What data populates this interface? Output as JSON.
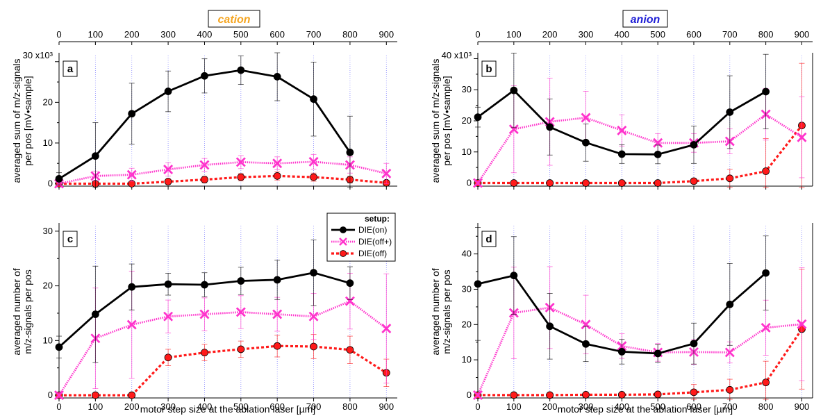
{
  "figure": {
    "x_axis_label": "motor step size at the ablation laser [µm]",
    "column_titles": [
      {
        "text": "cation",
        "color": "#f5a623"
      },
      {
        "text": "anion",
        "color": "#1f1fd6"
      }
    ],
    "legend": {
      "title": "setup:",
      "entries": [
        "DIE(on)",
        "DIE(off+)",
        "DIE(off)"
      ],
      "placement": "top-right of panel c"
    },
    "series_colors": {
      "DIE(on)": "#000000",
      "DIE(off+)": "#ff33cc",
      "DIE(off)": "#ff1a1a"
    }
  },
  "chart_data": [
    {
      "type": "line",
      "panel": "a",
      "ylabel": "averaged sum of m/z-signals per pos [mV•sample]",
      "y_multiplier_label": "30 x10³",
      "xlim": [
        0,
        930
      ],
      "ylim": [
        -0.6,
        31.5
      ],
      "x_ticks": [
        0,
        100,
        200,
        300,
        400,
        500,
        600,
        700,
        800,
        900
      ],
      "y_ticks": [
        0,
        10,
        20
      ],
      "series": [
        {
          "name": "DIE(on)",
          "x": [
            0,
            100,
            200,
            300,
            400,
            500,
            600,
            700,
            800
          ],
          "y": [
            1.2,
            6.8,
            17.2,
            22.7,
            26.5,
            27.9,
            26.3,
            20.8,
            7.7
          ],
          "err": [
            1.5,
            8.2,
            7.5,
            5,
            4.2,
            3.5,
            5.9,
            9.1,
            8.9
          ]
        },
        {
          "name": "DIE(off+)",
          "x": [
            0,
            100,
            200,
            300,
            400,
            500,
            600,
            700,
            800,
            900
          ],
          "y": [
            0,
            1.9,
            2.2,
            3.5,
            4.6,
            5.3,
            5.0,
            5.4,
            4.6,
            2.5
          ],
          "err": [
            0.3,
            1.2,
            1.6,
            1.6,
            1.6,
            1.6,
            1.6,
            1.8,
            2,
            2.5
          ]
        },
        {
          "name": "DIE(off)",
          "x": [
            0,
            100,
            200,
            300,
            400,
            500,
            600,
            700,
            800,
            900
          ],
          "y": [
            0,
            0,
            0,
            0.5,
            1.0,
            1.6,
            1.9,
            1.6,
            1.0,
            0.2
          ],
          "err": [
            0,
            0,
            0,
            0.5,
            0.8,
            0.9,
            1.0,
            1.0,
            0.8,
            0.3
          ]
        }
      ]
    },
    {
      "type": "line",
      "panel": "b",
      "ylabel": "averaged sum of m/z-signals per pos [mV•sample]",
      "y_multiplier_label": "40 x10³",
      "xlim": [
        0,
        930
      ],
      "ylim": [
        -1,
        41
      ],
      "x_ticks": [
        0,
        100,
        200,
        300,
        400,
        500,
        600,
        700,
        800,
        900
      ],
      "y_ticks": [
        0,
        10,
        20,
        30
      ],
      "series": [
        {
          "name": "DIE(on)",
          "x": [
            0,
            100,
            200,
            300,
            400,
            500,
            600,
            700,
            800
          ],
          "y": [
            21.2,
            29.8,
            18,
            13,
            9.3,
            9.2,
            12.3,
            22.8,
            29.4
          ],
          "err": [
            3.2,
            12,
            9,
            6,
            3,
            3,
            6,
            11.7,
            12
          ]
        },
        {
          "name": "DIE(off+)",
          "x": [
            0,
            100,
            200,
            300,
            400,
            500,
            600,
            700,
            800,
            900
          ],
          "y": [
            0,
            17.3,
            19.7,
            21,
            16.9,
            12.9,
            12.9,
            13.4,
            22.1,
            14.7
          ],
          "err": [
            0.5,
            14,
            14,
            8.5,
            5,
            3,
            3,
            4,
            8.3,
            13
          ]
        },
        {
          "name": "DIE(off)",
          "x": [
            0,
            100,
            200,
            300,
            400,
            500,
            600,
            700,
            800,
            900
          ],
          "y": [
            0,
            0,
            0,
            0,
            0,
            0,
            0.6,
            1.5,
            3.8,
            18.5
          ],
          "err": [
            0,
            0,
            0,
            0,
            0,
            0.2,
            0.8,
            2.9,
            10.5,
            20
          ]
        }
      ]
    },
    {
      "type": "line",
      "panel": "c",
      "ylabel": "averaged number of m/z-signals per pos",
      "xlim": [
        0,
        930
      ],
      "ylim": [
        -0.5,
        31
      ],
      "x_ticks": [
        0,
        100,
        200,
        300,
        400,
        500,
        600,
        700,
        800,
        900
      ],
      "y_ticks": [
        0,
        10,
        20,
        30
      ],
      "series": [
        {
          "name": "DIE(on)",
          "x": [
            0,
            100,
            200,
            300,
            400,
            500,
            600,
            700,
            800
          ],
          "y": [
            8.8,
            14.8,
            19.8,
            20.3,
            20.2,
            20.9,
            21.1,
            22.4,
            20.5
          ],
          "err": [
            2,
            8.8,
            4.2,
            2,
            2.2,
            2.5,
            3.6,
            6,
            3
          ]
        },
        {
          "name": "DIE(off+)",
          "x": [
            0,
            100,
            200,
            300,
            400,
            500,
            600,
            700,
            800,
            900
          ],
          "y": [
            0,
            10.4,
            12.9,
            14.4,
            14.8,
            15.2,
            14.8,
            14.4,
            17.2,
            12.2
          ],
          "err": [
            0.5,
            9.2,
            9.8,
            3,
            3,
            3,
            3.1,
            4.2,
            5.1,
            10
          ]
        },
        {
          "name": "DIE(off)",
          "x": [
            0,
            100,
            200,
            300,
            400,
            500,
            600,
            700,
            800,
            900
          ],
          "y": [
            0,
            0,
            0,
            6.9,
            7.8,
            8.4,
            9.0,
            8.9,
            8.3,
            4.1
          ],
          "err": [
            0,
            0,
            0,
            1.5,
            1.5,
            1.5,
            2,
            2.2,
            2.5,
            2.5
          ]
        }
      ]
    },
    {
      "type": "line",
      "panel": "d",
      "ylabel": "averaged number of m/z-signals per pos",
      "xlim": [
        0,
        930
      ],
      "ylim": [
        -0.8,
        48
      ],
      "x_ticks": [
        0,
        100,
        200,
        300,
        400,
        500,
        600,
        700,
        800,
        900
      ],
      "y_ticks": [
        0,
        10,
        20,
        30,
        40
      ],
      "series": [
        {
          "name": "DIE(on)",
          "x": [
            0,
            100,
            200,
            300,
            400,
            500,
            600,
            700,
            800
          ],
          "y": [
            31.5,
            33.9,
            19.5,
            14.5,
            12.3,
            11.8,
            14.6,
            25.7,
            34.6
          ],
          "err": [
            16,
            11,
            9.3,
            5,
            3.5,
            2.5,
            5.8,
            11.6,
            10.5
          ]
        },
        {
          "name": "DIE(off+)",
          "x": [
            0,
            100,
            200,
            300,
            400,
            500,
            600,
            700,
            800,
            900
          ],
          "y": [
            0,
            23.3,
            24.8,
            20,
            13.9,
            12.1,
            12.2,
            12.1,
            19.1,
            20.1
          ],
          "err": [
            0.5,
            13,
            11.6,
            8.3,
            3.5,
            2.5,
            3.5,
            3,
            7.8,
            16
          ]
        },
        {
          "name": "DIE(off)",
          "x": [
            0,
            100,
            200,
            300,
            400,
            500,
            600,
            700,
            800,
            900
          ],
          "y": [
            0,
            0,
            0,
            0.1,
            0.1,
            0.2,
            0.8,
            1.5,
            3.6,
            18.7
          ],
          "err": [
            0,
            0,
            0,
            0.1,
            0.1,
            0.2,
            2.2,
            3,
            6,
            17
          ]
        }
      ]
    }
  ]
}
